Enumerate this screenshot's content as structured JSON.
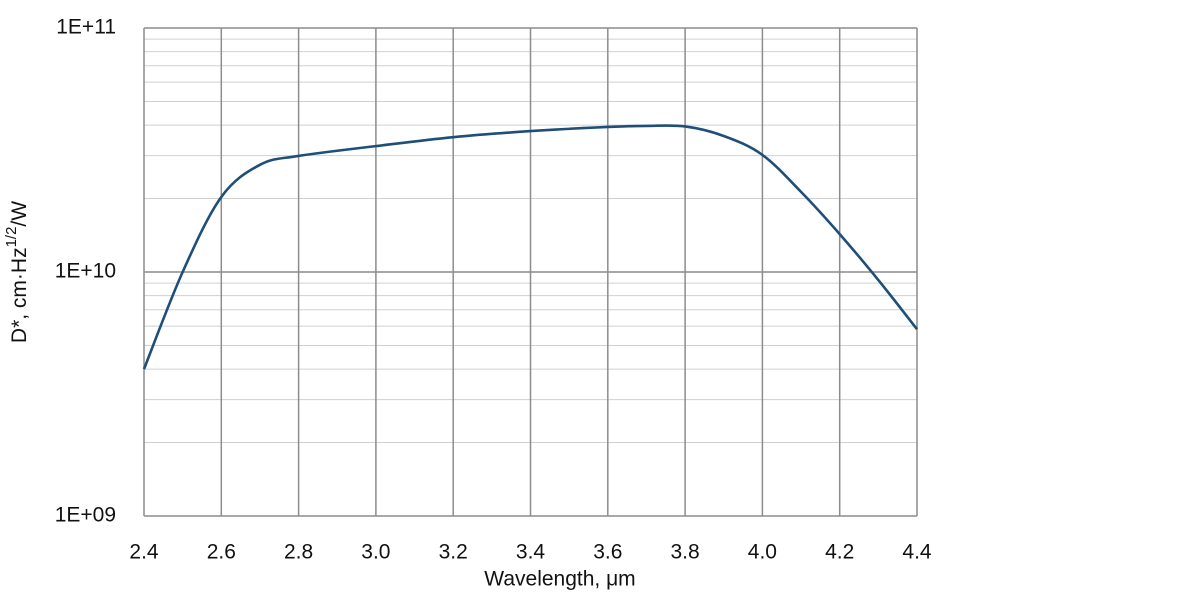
{
  "chart_data": {
    "type": "line",
    "scale_y": "log",
    "grid": true,
    "minor_grid": true,
    "xlabel": "Wavelength, μm",
    "ylabel": {
      "text": "D*, cm·Hz",
      "superscript": "1/2",
      "suffix": "/W"
    },
    "xlim": [
      2.4,
      4.4
    ],
    "xticks": [
      2.4,
      2.6,
      2.8,
      {
        "value": 3,
        "label": "3.0"
      },
      3.2,
      3.4,
      3.6,
      3.8,
      {
        "value": 4,
        "label": "4.0"
      },
      4.2,
      4.4
    ],
    "ylim": [
      1000000000,
      100000000000
    ],
    "yticks": [
      {
        "value": 1000000000,
        "label": "1E+09"
      },
      {
        "value": 10000000000,
        "label": "1E+10"
      },
      {
        "value": 100000000000,
        "label": "1E+11"
      }
    ],
    "x": [
      2.4,
      2.5,
      2.6,
      2.7,
      2.8,
      3.0,
      3.2,
      3.4,
      3.6,
      3.7,
      3.8,
      3.9,
      4.0,
      4.1,
      4.2,
      4.3,
      4.4
    ],
    "series": [
      {
        "color": "#1f4e79",
        "values": [
          4000000000,
          10000000000,
          20300000000,
          27500000000,
          29900000000,
          32800000000,
          35700000000,
          37800000000,
          39300000000,
          39700000000,
          39500000000,
          36100000000,
          30200000000,
          21300000000,
          14300000000,
          9270000000,
          5830000000
        ]
      }
    ]
  }
}
